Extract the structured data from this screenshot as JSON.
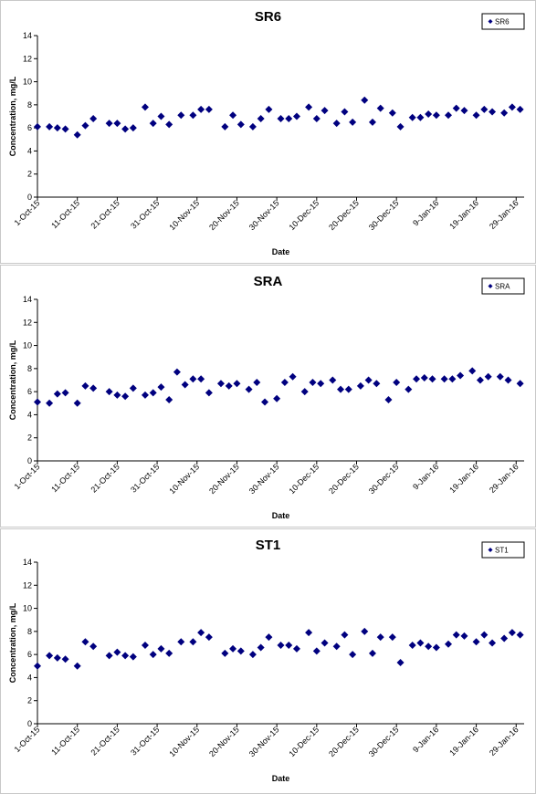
{
  "chart_data": [
    {
      "type": "scatter",
      "title": "SR6",
      "xlabel": "Date",
      "ylabel": "Concentration, mg/L",
      "ylim": [
        0,
        14
      ],
      "yticks": [
        "0",
        "2",
        "4",
        "6",
        "8",
        "10",
        "12",
        "14"
      ],
      "xlim": [
        "2015-10-01",
        "2016-01-31"
      ],
      "xticks": [
        "1-Oct-15",
        "11-Oct-15",
        "21-Oct-15",
        "31-Oct-15",
        "10-Nov-15",
        "20-Nov-15",
        "30-Nov-15",
        "10-Dec-15",
        "20-Dec-15",
        "30-Dec-15",
        "9-Jan-16",
        "19-Jan-16",
        "29-Jan-16"
      ],
      "legend": {
        "position": "top-right",
        "entries": [
          "SR6"
        ]
      },
      "marker_color": "#00007f",
      "grid": false,
      "series": [
        {
          "name": "SR6",
          "x": [
            "2015-10-01",
            "2015-10-04",
            "2015-10-06",
            "2015-10-08",
            "2015-10-11",
            "2015-10-13",
            "2015-10-15",
            "2015-10-19",
            "2015-10-21",
            "2015-10-23",
            "2015-10-25",
            "2015-10-28",
            "2015-10-30",
            "2015-11-01",
            "2015-11-03",
            "2015-11-06",
            "2015-11-09",
            "2015-11-11",
            "2015-11-13",
            "2015-11-17",
            "2015-11-19",
            "2015-11-21",
            "2015-11-24",
            "2015-11-26",
            "2015-11-28",
            "2015-12-01",
            "2015-12-03",
            "2015-12-05",
            "2015-12-08",
            "2015-12-10",
            "2015-12-12",
            "2015-12-15",
            "2015-12-17",
            "2015-12-19",
            "2015-12-22",
            "2015-12-24",
            "2015-12-26",
            "2015-12-29",
            "2015-12-31",
            "2016-01-03",
            "2016-01-05",
            "2016-01-07",
            "2016-01-09",
            "2016-01-12",
            "2016-01-14",
            "2016-01-16",
            "2016-01-19",
            "2016-01-21",
            "2016-01-23",
            "2016-01-26",
            "2016-01-28",
            "2016-01-30"
          ],
          "y": [
            6.1,
            6.1,
            6.0,
            5.9,
            5.4,
            6.2,
            6.8,
            6.4,
            6.4,
            5.9,
            6.0,
            7.8,
            6.4,
            7.0,
            6.3,
            7.1,
            7.1,
            7.6,
            7.6,
            6.1,
            7.1,
            6.3,
            6.1,
            6.8,
            7.6,
            6.8,
            6.8,
            7.0,
            7.8,
            6.8,
            7.5,
            6.4,
            7.4,
            6.5,
            8.4,
            6.5,
            7.7,
            7.3,
            6.1,
            6.9,
            6.9,
            7.2,
            7.1,
            7.1,
            7.7,
            7.5,
            7.1,
            7.6,
            7.4,
            7.3,
            7.8,
            7.6
          ]
        }
      ]
    },
    {
      "type": "scatter",
      "title": "SRA",
      "xlabel": "Date",
      "ylabel": "Concentration, mg/L",
      "ylim": [
        0,
        14
      ],
      "yticks": [
        "0",
        "2",
        "4",
        "6",
        "8",
        "10",
        "12",
        "14"
      ],
      "xlim": [
        "2015-10-01",
        "2016-01-31"
      ],
      "xticks": [
        "1-Oct-15",
        "11-Oct-15",
        "21-Oct-15",
        "31-Oct-15",
        "10-Nov-15",
        "20-Nov-15",
        "30-Nov-15",
        "10-Dec-15",
        "20-Dec-15",
        "30-Dec-15",
        "9-Jan-16",
        "19-Jan-16",
        "29-Jan-16"
      ],
      "legend": {
        "position": "top-right",
        "entries": [
          "SRA"
        ]
      },
      "marker_color": "#00007f",
      "grid": false,
      "series": [
        {
          "name": "SRA",
          "x": [
            "2015-10-01",
            "2015-10-04",
            "2015-10-06",
            "2015-10-08",
            "2015-10-11",
            "2015-10-13",
            "2015-10-15",
            "2015-10-19",
            "2015-10-21",
            "2015-10-23",
            "2015-10-25",
            "2015-10-28",
            "2015-10-30",
            "2015-11-01",
            "2015-11-03",
            "2015-11-05",
            "2015-11-07",
            "2015-11-09",
            "2015-11-11",
            "2015-11-13",
            "2015-11-16",
            "2015-11-18",
            "2015-11-20",
            "2015-11-23",
            "2015-11-25",
            "2015-11-27",
            "2015-11-30",
            "2015-12-02",
            "2015-12-04",
            "2015-12-07",
            "2015-12-09",
            "2015-12-11",
            "2015-12-14",
            "2015-12-16",
            "2015-12-18",
            "2015-12-21",
            "2015-12-23",
            "2015-12-25",
            "2015-12-28",
            "2015-12-30",
            "2016-01-02",
            "2016-01-04",
            "2016-01-06",
            "2016-01-08",
            "2016-01-11",
            "2016-01-13",
            "2016-01-15",
            "2016-01-18",
            "2016-01-20",
            "2016-01-22",
            "2016-01-25",
            "2016-01-27",
            "2016-01-30"
          ],
          "y": [
            5.1,
            5.0,
            5.8,
            5.9,
            5.0,
            6.5,
            6.3,
            6.0,
            5.7,
            5.6,
            6.3,
            5.7,
            5.9,
            6.4,
            5.3,
            7.7,
            6.6,
            7.1,
            7.1,
            5.9,
            6.7,
            6.5,
            6.7,
            6.2,
            6.8,
            5.1,
            5.4,
            6.8,
            7.3,
            6.0,
            6.8,
            6.7,
            7.0,
            6.2,
            6.2,
            6.5,
            7.0,
            6.7,
            5.3,
            6.8,
            6.2,
            7.1,
            7.2,
            7.1,
            7.1,
            7.1,
            7.4,
            7.8,
            7.0,
            7.3,
            7.3,
            7.0,
            6.7
          ]
        }
      ]
    },
    {
      "type": "scatter",
      "title": "ST1",
      "xlabel": "Date",
      "ylabel": "Concentration, mg/L",
      "ylim": [
        0,
        14
      ],
      "yticks": [
        "0",
        "2",
        "4",
        "6",
        "8",
        "10",
        "12",
        "14"
      ],
      "xlim": [
        "2015-10-01",
        "2016-01-31"
      ],
      "xticks": [
        "1-Oct-15",
        "11-Oct-15",
        "21-Oct-15",
        "31-Oct-15",
        "10-Nov-15",
        "20-Nov-15",
        "30-Nov-15",
        "10-Dec-15",
        "20-Dec-15",
        "30-Dec-15",
        "9-Jan-16",
        "19-Jan-16",
        "29-Jan-16"
      ],
      "legend": {
        "position": "top-right",
        "entries": [
          "ST1"
        ]
      },
      "marker_color": "#00007f",
      "grid": false,
      "series": [
        {
          "name": "ST1",
          "x": [
            "2015-10-01",
            "2015-10-04",
            "2015-10-06",
            "2015-10-08",
            "2015-10-11",
            "2015-10-13",
            "2015-10-15",
            "2015-10-19",
            "2015-10-21",
            "2015-10-23",
            "2015-10-25",
            "2015-10-28",
            "2015-10-30",
            "2015-11-01",
            "2015-11-03",
            "2015-11-06",
            "2015-11-09",
            "2015-11-11",
            "2015-11-13",
            "2015-11-17",
            "2015-11-19",
            "2015-11-21",
            "2015-11-24",
            "2015-11-26",
            "2015-11-28",
            "2015-12-01",
            "2015-12-03",
            "2015-12-05",
            "2015-12-08",
            "2015-12-10",
            "2015-12-12",
            "2015-12-15",
            "2015-12-17",
            "2015-12-19",
            "2015-12-22",
            "2015-12-24",
            "2015-12-26",
            "2015-12-29",
            "2015-12-31",
            "2016-01-03",
            "2016-01-05",
            "2016-01-07",
            "2016-01-09",
            "2016-01-12",
            "2016-01-14",
            "2016-01-16",
            "2016-01-19",
            "2016-01-21",
            "2016-01-23",
            "2016-01-26",
            "2016-01-28",
            "2016-01-30"
          ],
          "y": [
            5.0,
            5.9,
            5.7,
            5.6,
            5.0,
            7.1,
            6.7,
            5.9,
            6.2,
            5.9,
            5.8,
            6.8,
            6.0,
            6.5,
            6.1,
            7.1,
            7.1,
            7.9,
            7.5,
            6.1,
            6.5,
            6.3,
            6.0,
            6.6,
            7.5,
            6.8,
            6.8,
            6.5,
            7.9,
            6.3,
            7.0,
            6.7,
            7.7,
            6.0,
            8.0,
            6.1,
            7.5,
            7.5,
            5.3,
            6.8,
            7.0,
            6.7,
            6.6,
            6.9,
            7.7,
            7.6,
            7.1,
            7.7,
            7.0,
            7.4,
            7.9,
            7.7
          ]
        }
      ]
    }
  ]
}
